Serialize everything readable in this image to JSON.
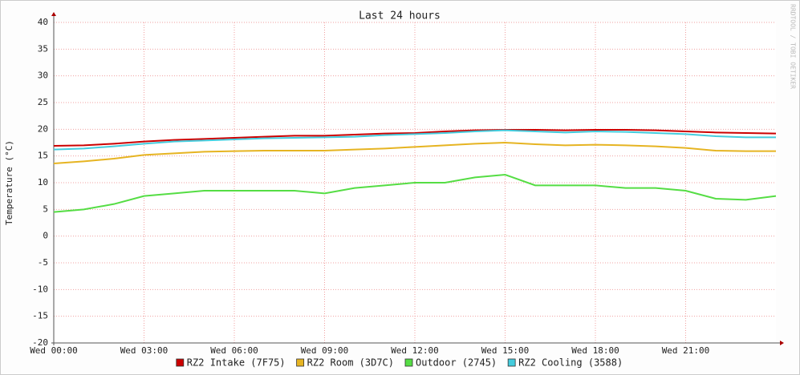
{
  "chart_data": {
    "type": "line",
    "title": "Last 24 hours",
    "y_label": "Temperature (°C)",
    "watermark": "RRDTOOL / TOBI OETIKER",
    "x": [
      0,
      1,
      2,
      3,
      4,
      5,
      6,
      7,
      8,
      9,
      10,
      11,
      12,
      13,
      14,
      15,
      16,
      17,
      18,
      19,
      20,
      21,
      22,
      23,
      24
    ],
    "xlim": [
      0,
      24
    ],
    "xticks": [
      {
        "value": 0,
        "label": "Wed 00:00"
      },
      {
        "value": 3,
        "label": "Wed 03:00"
      },
      {
        "value": 6,
        "label": "Wed 06:00"
      },
      {
        "value": 9,
        "label": "Wed 09:00"
      },
      {
        "value": 12,
        "label": "Wed 12:00"
      },
      {
        "value": 15,
        "label": "Wed 15:00"
      },
      {
        "value": 18,
        "label": "Wed 18:00"
      },
      {
        "value": 21,
        "label": "Wed 21:00"
      }
    ],
    "ylim": [
      -20,
      40
    ],
    "yticks": [
      -20,
      -15,
      -10,
      -5,
      0,
      5,
      10,
      15,
      20,
      25,
      30,
      35,
      40
    ],
    "grid": true,
    "legend": "bottom",
    "series": [
      {
        "name": "RZ2 Intake (7F75)",
        "color": "#cc0000",
        "values": [
          16.9,
          17.0,
          17.3,
          17.7,
          18.0,
          18.2,
          18.4,
          18.6,
          18.8,
          18.8,
          19.0,
          19.2,
          19.3,
          19.6,
          19.8,
          19.9,
          19.9,
          19.8,
          19.9,
          19.9,
          19.8,
          19.6,
          19.4,
          19.3,
          19.2
        ]
      },
      {
        "name": "RZ2 Room (3D7C)",
        "color": "#e6b422",
        "values": [
          13.6,
          14.0,
          14.5,
          15.2,
          15.5,
          15.8,
          15.9,
          16.0,
          16.0,
          16.0,
          16.2,
          16.4,
          16.7,
          17.0,
          17.3,
          17.5,
          17.2,
          17.0,
          17.1,
          17.0,
          16.8,
          16.5,
          16.0,
          15.9,
          15.9
        ]
      },
      {
        "name": "Outdoor (2745)",
        "color": "#55dd44",
        "values": [
          4.5,
          5.0,
          6.0,
          7.5,
          8.0,
          8.5,
          8.5,
          8.5,
          8.5,
          8.0,
          9.0,
          9.5,
          10.0,
          10.0,
          11.0,
          11.5,
          9.5,
          9.5,
          9.5,
          9.0,
          9.0,
          8.5,
          7.0,
          6.8,
          7.5
        ]
      },
      {
        "name": "RZ2 Cooling (3588)",
        "color": "#44ccdd",
        "values": [
          16.2,
          16.4,
          16.8,
          17.3,
          17.7,
          17.9,
          18.1,
          18.3,
          18.4,
          18.5,
          18.6,
          18.9,
          19.1,
          19.3,
          19.6,
          19.8,
          19.6,
          19.4,
          19.6,
          19.5,
          19.3,
          19.1,
          18.7,
          18.5,
          18.5
        ]
      }
    ]
  }
}
